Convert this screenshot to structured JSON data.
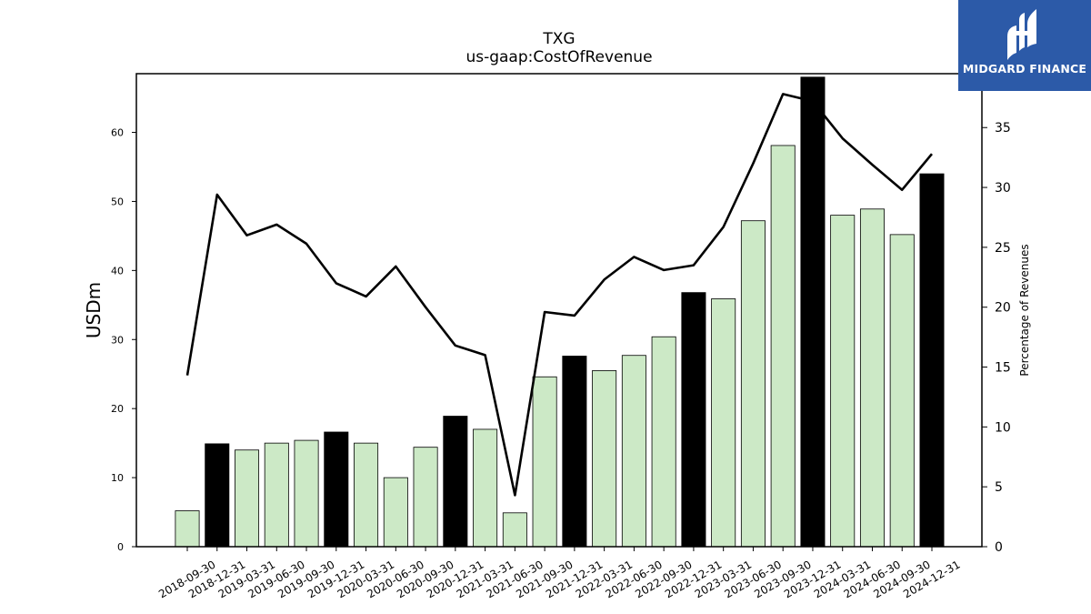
{
  "chart_data": {
    "type": "bar",
    "title": "TXG",
    "subtitle": "us-gaap:CostOfRevenue",
    "ylabel": "USDm",
    "y2label": "Percentage of Revenues",
    "ylim": [
      0,
      68.5
    ],
    "y2lim": [
      0,
      39.5
    ],
    "yticks": [
      0,
      10,
      20,
      30,
      40,
      50,
      60
    ],
    "y2ticks": [
      0,
      5,
      10,
      15,
      20,
      25,
      30,
      35
    ],
    "categories": [
      "2018-09-30",
      "2018-12-31",
      "2019-03-31",
      "2019-06-30",
      "2019-09-30",
      "2019-12-31",
      "2020-03-31",
      "2020-06-30",
      "2020-09-30",
      "2020-12-31",
      "2021-03-31",
      "2021-06-30",
      "2021-09-30",
      "2021-12-31",
      "2022-03-31",
      "2022-06-30",
      "2022-09-30",
      "2022-12-31",
      "2023-03-31",
      "2023-06-30",
      "2023-09-30",
      "2023-12-31",
      "2024-03-31",
      "2024-06-30",
      "2024-09-30",
      "2024-12-31"
    ],
    "series": [
      {
        "type": "bar",
        "values": [
          5.2,
          14.9,
          14.0,
          15.0,
          15.4,
          16.6,
          15.0,
          10.0,
          14.4,
          18.9,
          17.0,
          4.9,
          24.6,
          27.6,
          25.5,
          27.7,
          30.4,
          36.8,
          35.9,
          47.2,
          58.1,
          68.0,
          48.0,
          48.9,
          45.2,
          54.0
        ],
        "annual": [
          false,
          true,
          false,
          false,
          false,
          true,
          false,
          false,
          false,
          true,
          false,
          false,
          false,
          true,
          false,
          false,
          false,
          true,
          false,
          false,
          false,
          true,
          false,
          false,
          false,
          true
        ]
      },
      {
        "type": "line",
        "axis": "right",
        "values": [
          14.3,
          29.4,
          26.0,
          26.9,
          25.3,
          22.0,
          20.9,
          23.4,
          20.0,
          16.8,
          16.0,
          4.3,
          19.6,
          19.3,
          22.3,
          24.2,
          23.1,
          23.5,
          26.7,
          32.0,
          37.8,
          37.2,
          34.1,
          31.9,
          29.8,
          32.8
        ]
      }
    ],
    "colors": {
      "bar_quarter": "#cce9c6",
      "bar_annual": "#000000",
      "line": "#000000"
    },
    "grid": false,
    "legend": "none"
  },
  "logo": {
    "text": "MIDGARD FINANCE",
    "color": "#2c5aa8"
  }
}
